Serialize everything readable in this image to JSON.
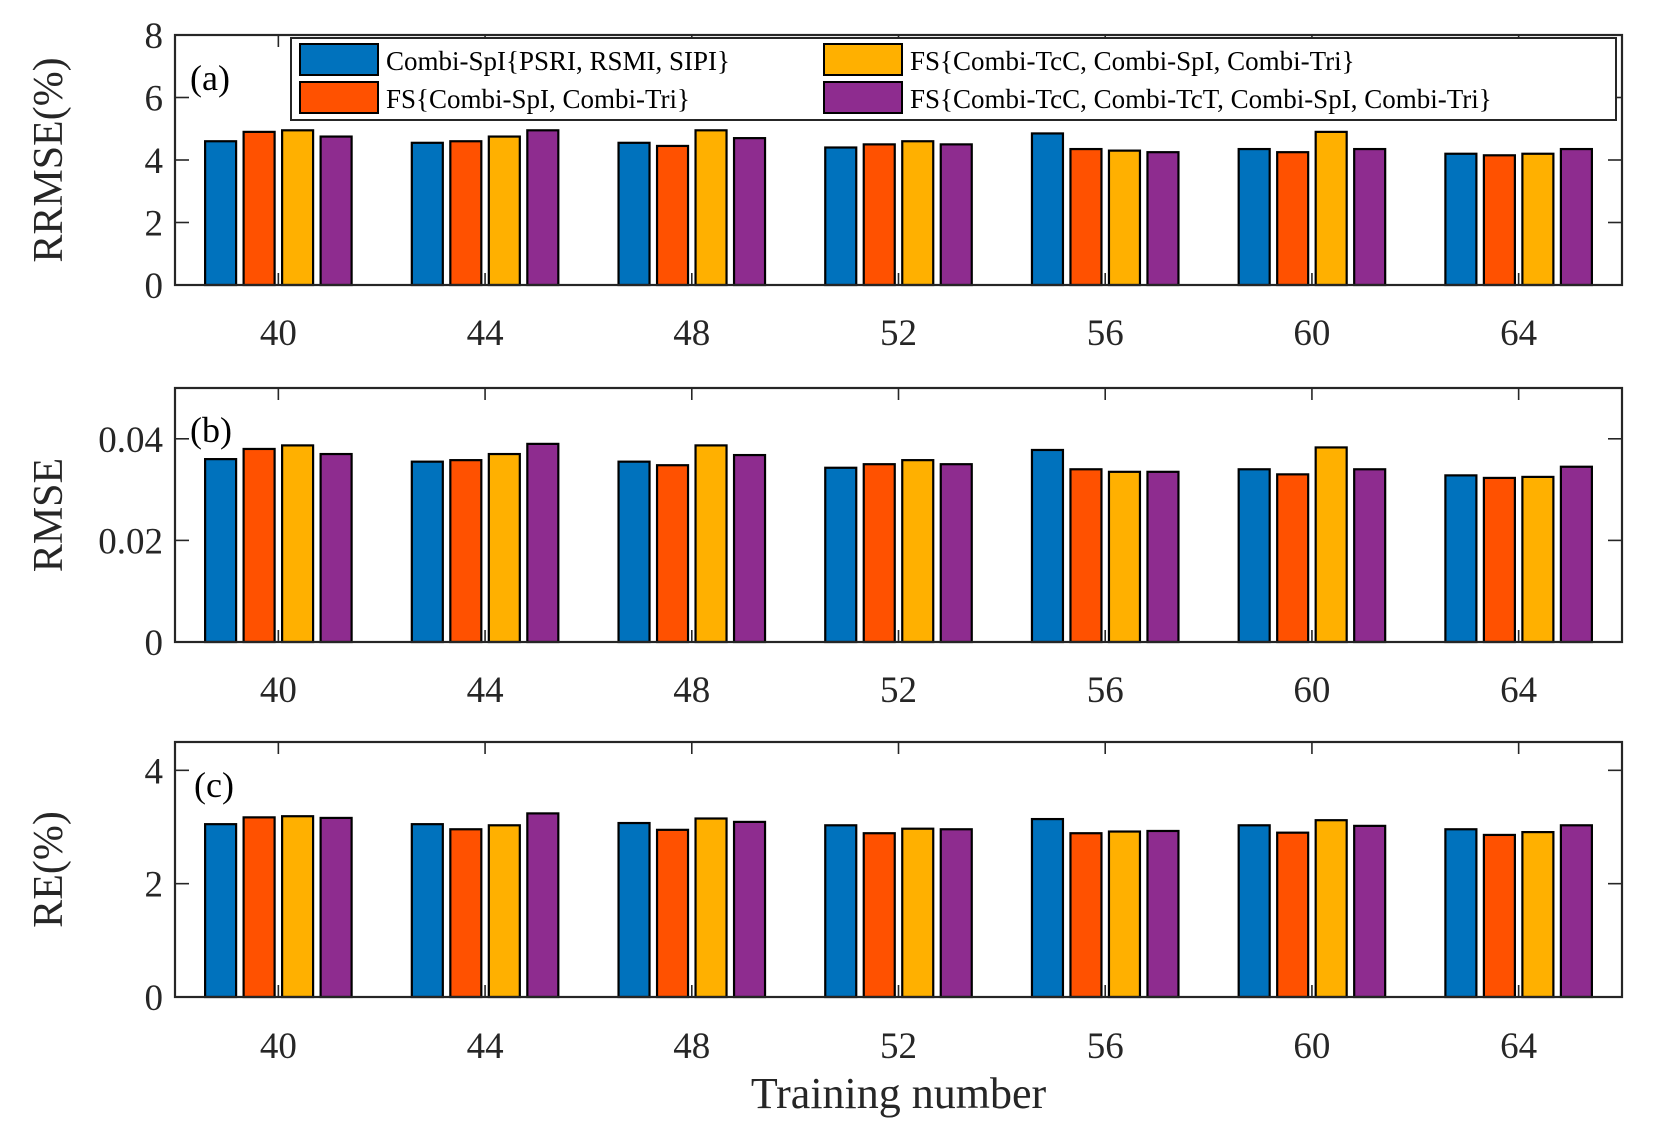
{
  "chart_data": [
    {
      "type": "bar",
      "panel_label": "(a)",
      "categories": [
        "40",
        "44",
        "48",
        "52",
        "56",
        "60",
        "64"
      ],
      "ylabel": "RRMSE(%)",
      "xlabel": "",
      "ylim": [
        0,
        8
      ],
      "yticks": [
        "0",
        "2",
        "4",
        "6",
        "8"
      ],
      "grid": false,
      "series": [
        {
          "name": "Combi-SpI{PSRI, RSMI, SIPI}",
          "values": [
            4.6,
            4.55,
            4.55,
            4.4,
            4.85,
            4.35,
            4.2
          ]
        },
        {
          "name": "FS{Combi-SpI, Combi-Tri}",
          "values": [
            4.9,
            4.6,
            4.45,
            4.5,
            4.35,
            4.25,
            4.15
          ]
        },
        {
          "name": "FS{Combi-TcC, Combi-SpI, Combi-Tri}",
          "values": [
            4.95,
            4.75,
            4.95,
            4.6,
            4.3,
            4.9,
            4.2
          ]
        },
        {
          "name": "FS{Combi-TcC, Combi-TcT, Combi-SpI, Combi-Tri}",
          "values": [
            4.75,
            4.95,
            4.7,
            4.5,
            4.25,
            4.35,
            4.35
          ]
        }
      ],
      "legend": {
        "placement": "top",
        "entries": [
          "Combi-SpI{PSRI, RSMI, SIPI}",
          "FS{Combi-TcC, Combi-SpI, Combi-Tri}",
          "FS{Combi-SpI, Combi-Tri}",
          "FS{Combi-TcC, Combi-TcT, Combi-SpI, Combi-Tri}"
        ]
      }
    },
    {
      "type": "bar",
      "panel_label": "(b)",
      "categories": [
        "40",
        "44",
        "48",
        "52",
        "56",
        "60",
        "64"
      ],
      "ylabel": "RMSE",
      "xlabel": "",
      "ylim": [
        0,
        0.05
      ],
      "yticks": [
        "0",
        "0.02",
        "0.04"
      ],
      "grid": false,
      "series": [
        {
          "name": "Combi-SpI{PSRI, RSMI, SIPI}",
          "values": [
            0.036,
            0.0355,
            0.0355,
            0.0343,
            0.0378,
            0.034,
            0.0328
          ]
        },
        {
          "name": "FS{Combi-SpI, Combi-Tri}",
          "values": [
            0.038,
            0.0358,
            0.0348,
            0.035,
            0.034,
            0.033,
            0.0323
          ]
        },
        {
          "name": "FS{Combi-TcC, Combi-SpI, Combi-Tri}",
          "values": [
            0.0387,
            0.037,
            0.0387,
            0.0358,
            0.0335,
            0.0383,
            0.0325
          ]
        },
        {
          "name": "FS{Combi-TcC, Combi-TcT, Combi-SpI, Combi-Tri}",
          "values": [
            0.037,
            0.039,
            0.0368,
            0.035,
            0.0335,
            0.034,
            0.0345
          ]
        }
      ]
    },
    {
      "type": "bar",
      "panel_label": "(c)",
      "categories": [
        "40",
        "44",
        "48",
        "52",
        "56",
        "60",
        "64"
      ],
      "ylabel": "RE(%)",
      "xlabel": "Training number",
      "ylim": [
        0,
        4.5
      ],
      "yticks": [
        "0",
        "2",
        "4"
      ],
      "grid": false,
      "series": [
        {
          "name": "Combi-SpI{PSRI, RSMI, SIPI}",
          "values": [
            3.05,
            3.05,
            3.07,
            3.03,
            3.14,
            3.03,
            2.96
          ]
        },
        {
          "name": "FS{Combi-SpI, Combi-Tri}",
          "values": [
            3.17,
            2.96,
            2.95,
            2.89,
            2.89,
            2.9,
            2.86
          ]
        },
        {
          "name": "FS{Combi-TcC, Combi-SpI, Combi-Tri}",
          "values": [
            3.19,
            3.03,
            3.15,
            2.97,
            2.92,
            3.12,
            2.91
          ]
        },
        {
          "name": "FS{Combi-TcC, Combi-TcT, Combi-SpI, Combi-Tri}",
          "values": [
            3.16,
            3.24,
            3.09,
            2.96,
            2.93,
            3.02,
            3.03
          ]
        }
      ]
    }
  ],
  "colors": [
    "#0072BD",
    "#FF5100",
    "#FFB000",
    "#8E2C8F"
  ]
}
